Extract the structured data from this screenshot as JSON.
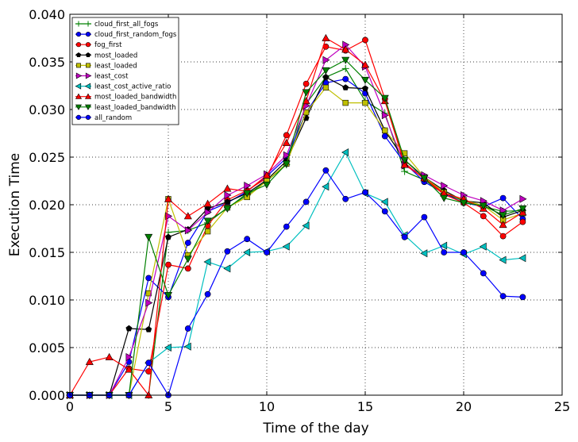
{
  "chart_data": {
    "type": "line",
    "title": "",
    "xlabel": "Time of the day",
    "ylabel": "Execution Time",
    "xlim": [
      0,
      25
    ],
    "ylim": [
      0.0,
      0.04
    ],
    "grid": true,
    "legend_position": "top-left",
    "xticks": [
      0,
      5,
      10,
      15,
      20,
      25
    ],
    "xtick_labels": [
      "0",
      "5",
      "10",
      "15",
      "20",
      "25"
    ],
    "yticks": [
      0.0,
      0.005,
      0.01,
      0.015,
      0.02,
      0.025,
      0.03,
      0.035,
      0.04
    ],
    "ytick_labels": [
      "0.000",
      "0.005",
      "0.010",
      "0.015",
      "0.020",
      "0.025",
      "0.030",
      "0.035",
      "0.040"
    ],
    "x": [
      0,
      1,
      2,
      3,
      4,
      5,
      6,
      7,
      8,
      9,
      10,
      11,
      12,
      13,
      14,
      15,
      16,
      17,
      18,
      19,
      20,
      21,
      22,
      23
    ],
    "series": [
      {
        "name": "cloud_first_all_fogs",
        "color": "#008000",
        "marker": "plus",
        "values": [
          0,
          0,
          0,
          0,
          0,
          0.0171,
          0.0173,
          0.0181,
          0.0197,
          0.021,
          0.0225,
          0.0242,
          0.0306,
          0.0334,
          0.0343,
          0.0309,
          0.0296,
          0.0235,
          0.0226,
          0.0212,
          0.0204,
          0.0198,
          0.0193,
          0.0194
        ]
      },
      {
        "name": "cloud_first_random_fogs",
        "color": "#0000ff",
        "marker": "circle",
        "values": [
          0,
          0,
          0,
          0.0035,
          0.0123,
          0.0103,
          0.016,
          0.0193,
          0.0202,
          0.0214,
          0.023,
          0.0249,
          0.0297,
          0.0328,
          0.0332,
          0.0317,
          0.0272,
          0.0244,
          0.0224,
          0.0212,
          0.0202,
          0.0198,
          0.0207,
          0.0185
        ]
      },
      {
        "name": "fog_first",
        "color": "#ff0000",
        "marker": "circle",
        "values": [
          0,
          0,
          0,
          0.0028,
          0.0025,
          0.0137,
          0.0133,
          0.0178,
          0.0205,
          0.0215,
          0.0228,
          0.0273,
          0.0327,
          0.0366,
          0.0362,
          0.0373,
          0.0311,
          0.0244,
          0.0227,
          0.0211,
          0.0202,
          0.0188,
          0.0167,
          0.0182
        ]
      },
      {
        "name": "most_loaded",
        "color": "#000000",
        "marker": "pentagon",
        "values": [
          0,
          0,
          0,
          0.007,
          0.0069,
          0.0166,
          0.0174,
          0.0196,
          0.0203,
          0.0212,
          0.0226,
          0.0246,
          0.0291,
          0.0334,
          0.0323,
          0.0322,
          0.0278,
          0.0247,
          0.0229,
          0.0215,
          0.0204,
          0.0202,
          0.0187,
          0.0194
        ]
      },
      {
        "name": "least_loaded",
        "color": "#bfbf00",
        "marker": "square",
        "values": [
          0,
          0,
          0,
          0,
          0.0107,
          0.0206,
          0.0147,
          0.0172,
          0.0197,
          0.0208,
          0.0225,
          0.0243,
          0.0297,
          0.0323,
          0.0307,
          0.0307,
          0.0278,
          0.0254,
          0.0229,
          0.0213,
          0.0205,
          0.0199,
          0.0184,
          0.0191
        ]
      },
      {
        "name": "least_cost",
        "color": "#bf00bf",
        "marker": "triangle-right",
        "values": [
          0,
          0,
          0,
          0.004,
          0.0097,
          0.0188,
          0.0173,
          0.0192,
          0.021,
          0.022,
          0.0232,
          0.0252,
          0.0304,
          0.0352,
          0.0368,
          0.0345,
          0.0294,
          0.0241,
          0.0231,
          0.022,
          0.021,
          0.0204,
          0.0194,
          0.0206
        ]
      },
      {
        "name": "least_cost_active_ratio",
        "color": "#00bfbf",
        "marker": "triangle-left",
        "values": [
          0,
          0,
          0,
          0,
          0.0034,
          0.005,
          0.0051,
          0.014,
          0.0133,
          0.015,
          0.0151,
          0.0156,
          0.0178,
          0.0219,
          0.0255,
          0.0212,
          0.0203,
          0.0168,
          0.0149,
          0.0157,
          0.0148,
          0.0156,
          0.0142,
          0.0144
        ]
      },
      {
        "name": "most_loaded_bandwidth",
        "color": "#ff0000",
        "marker": "triangle-up",
        "values": [
          0,
          0.0035,
          0.004,
          0.0027,
          0,
          0.0206,
          0.0188,
          0.0201,
          0.0217,
          0.0214,
          0.0231,
          0.0265,
          0.0309,
          0.0375,
          0.0363,
          0.0347,
          0.0309,
          0.0242,
          0.0228,
          0.0212,
          0.0206,
          0.0196,
          0.0179,
          0.0192
        ]
      },
      {
        "name": "least_loaded_bandwidth",
        "color": "#008000",
        "marker": "triangle-down",
        "values": [
          0,
          0,
          0,
          0,
          0.0166,
          0.0105,
          0.0143,
          0.0183,
          0.0196,
          0.0212,
          0.0221,
          0.0243,
          0.0318,
          0.0341,
          0.0352,
          0.0331,
          0.0312,
          0.0247,
          0.0228,
          0.0207,
          0.0202,
          0.0199,
          0.0189,
          0.0196
        ]
      },
      {
        "name": "all_random",
        "color": "#0000ff",
        "marker": "circle",
        "values": [
          0,
          0,
          0,
          0,
          0.0034,
          0,
          0.007,
          0.0106,
          0.0151,
          0.0164,
          0.015,
          0.0177,
          0.0203,
          0.0236,
          0.0206,
          0.0213,
          0.0193,
          0.0166,
          0.0187,
          0.015,
          0.015,
          0.0128,
          0.0104,
          0.0103
        ]
      }
    ]
  }
}
